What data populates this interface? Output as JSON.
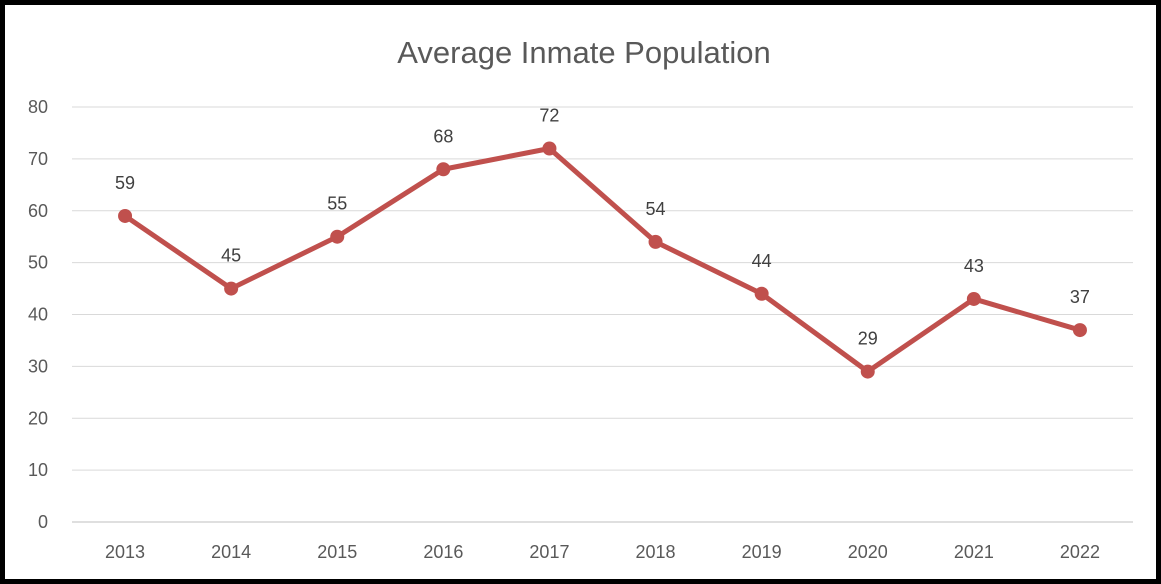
{
  "chart_data": {
    "type": "line",
    "title": "Average Inmate Population",
    "xlabel": "",
    "ylabel": "",
    "categories": [
      "2013",
      "2014",
      "2015",
      "2016",
      "2017",
      "2018",
      "2019",
      "2020",
      "2021",
      "2022"
    ],
    "series": [
      {
        "values": [
          59,
          45,
          55,
          68,
          72,
          54,
          44,
          29,
          43,
          37
        ],
        "color": "#C0504D"
      }
    ],
    "ylim": [
      0,
      80
    ],
    "yticks": [
      "0",
      "10",
      "20",
      "30",
      "40",
      "50",
      "60",
      "70",
      "80"
    ],
    "grid": true,
    "legend": "none",
    "data_labels": true,
    "marker": "circle"
  }
}
